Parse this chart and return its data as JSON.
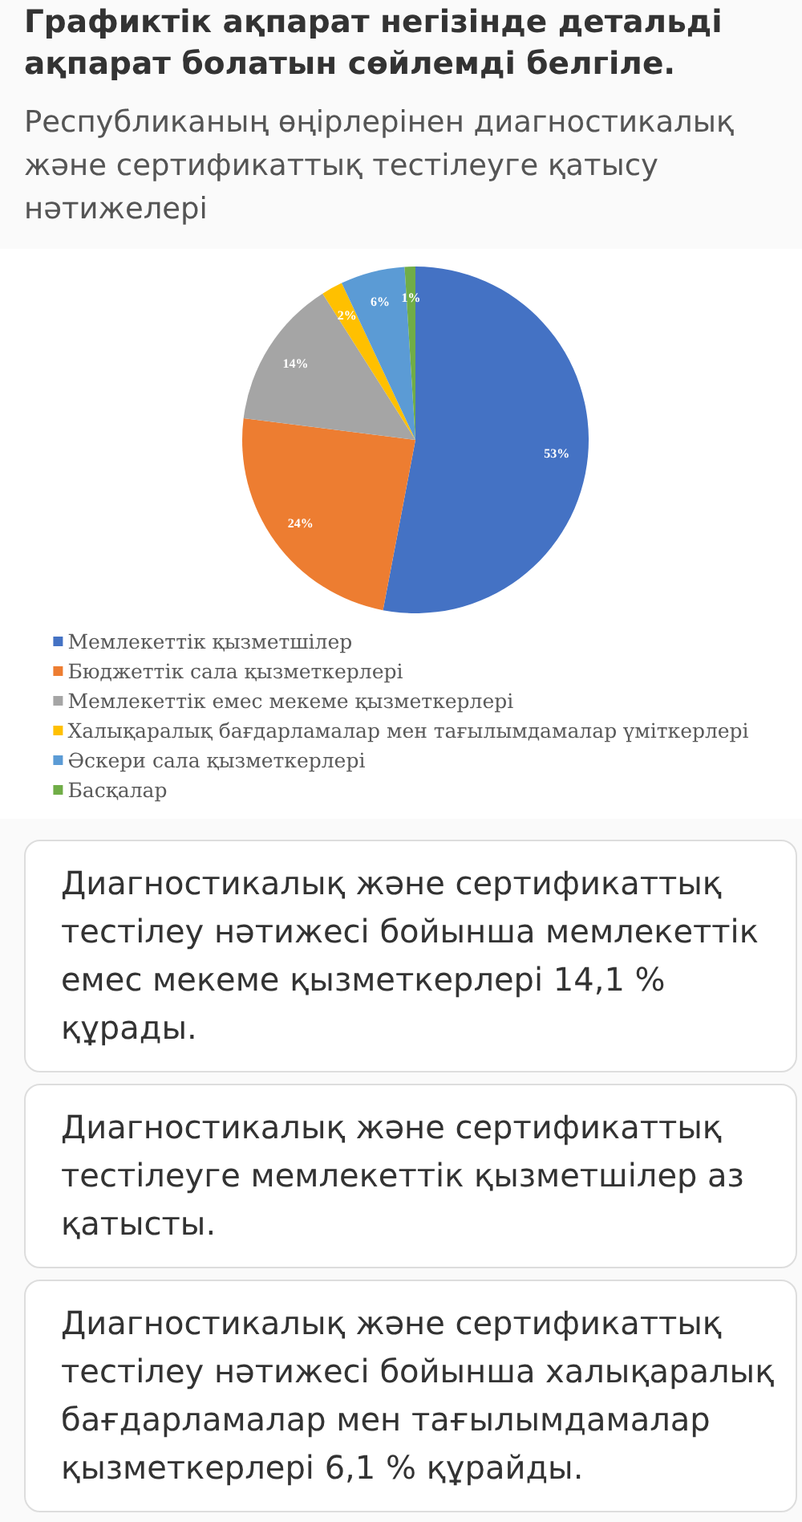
{
  "chart_data": {
    "type": "pie",
    "title": "Графиктік ақпарат негізінде детальді ақпарат болатын сөйлемді белгіле.",
    "subtitle": "Республиканың өңірлерінен диагностикалық және сертификаттық тестілеуге қатысу нәтижелері",
    "categories": [
      "Мемлекеттік қызметшілер",
      "Бюджеттік сала қызметкерлері",
      "Мемлекеттік емес мекеме қызметкерлері",
      "Халықаралық бағдарламалар мен тағылымдамалар үміткерлері",
      "Әскери сала қызметкерлері",
      "Басқалар"
    ],
    "values": [
      53,
      24,
      14,
      2,
      6,
      1
    ],
    "value_labels": [
      "53%",
      "24%",
      "14%",
      "2%",
      "6%",
      "1%"
    ],
    "colors": [
      "#4472c4",
      "#ed7d31",
      "#a5a5a5",
      "#ffc000",
      "#5b9bd5",
      "#70ad47"
    ],
    "legend": "bottom",
    "annotations": [
      "Диагностикалық және сертификаттық тестілеу нәтижесі бойынша мемлекеттік емес мекеме қызметкерлері 14,1 % құрады.",
      "Диагностикалық және сертификаттық тестілеуге мемлекеттік қызметшілер аз қатысты.",
      "Диагностикалық және сертификаттық тестілеу нәтижесі бойынша халықаралық бағдарламалар мен тағылымдамалар қызметкерлері 6,1 % құрайды."
    ]
  }
}
